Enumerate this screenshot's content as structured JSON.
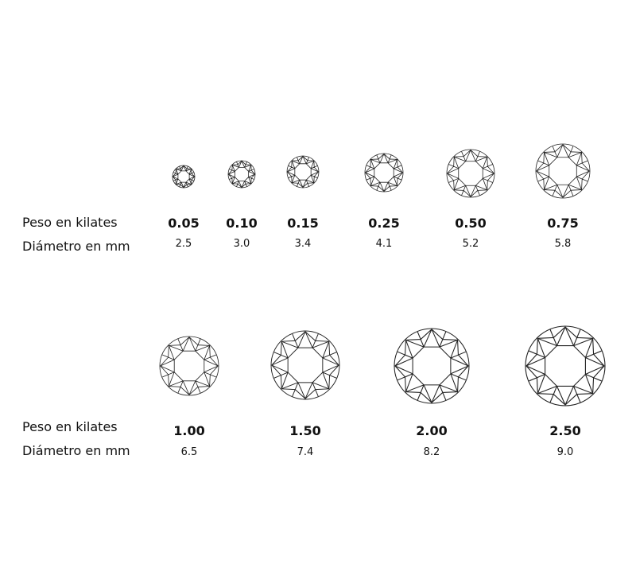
{
  "labels": {
    "weight": "Peso en kilates",
    "diameter": "Diámetro en mm"
  },
  "line_color": "#222222",
  "rows": [
    {
      "stones": [
        {
          "carat": "0.05",
          "diameter_mm": "2.5"
        },
        {
          "carat": "0.10",
          "diameter_mm": "3.0"
        },
        {
          "carat": "0.15",
          "diameter_mm": "3.4"
        },
        {
          "carat": "0.25",
          "diameter_mm": "4.1"
        },
        {
          "carat": "0.50",
          "diameter_mm": "5.2"
        },
        {
          "carat": "0.75",
          "diameter_mm": "5.8"
        }
      ]
    },
    {
      "stones": [
        {
          "carat": "1.00",
          "diameter_mm": "6.5"
        },
        {
          "carat": "1.50",
          "diameter_mm": "7.4"
        },
        {
          "carat": "2.00",
          "diameter_mm": "8.2"
        },
        {
          "carat": "2.50",
          "diameter_mm": "9.0"
        }
      ]
    }
  ]
}
